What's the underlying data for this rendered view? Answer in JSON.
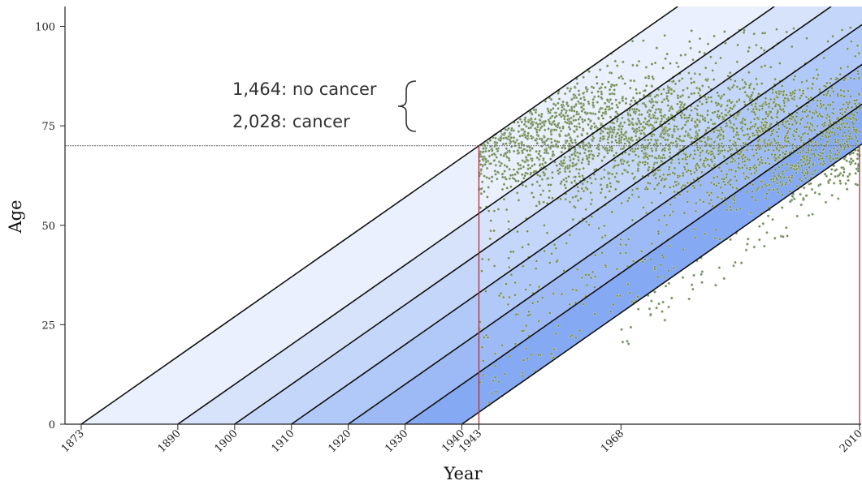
{
  "chart_data": {
    "type": "scatter",
    "title": "",
    "xlabel": "Year",
    "ylabel": "Age",
    "xlim": [
      1873,
      2010
    ],
    "ylim": [
      0,
      105
    ],
    "x_ticks": [
      1873,
      1890,
      1900,
      1910,
      1920,
      1930,
      1940,
      1943,
      1968,
      2010
    ],
    "y_ticks": [
      0,
      25,
      50,
      75,
      100
    ],
    "birth_cohort_lines": [
      1873,
      1890,
      1900,
      1910,
      1920,
      1930,
      1940
    ],
    "cohort_band_colors": [
      "#eaf0fd",
      "#d7e3fb",
      "#c4d6fa",
      "#b1c9f8",
      "#9dbaf6",
      "#86a9f3"
    ],
    "vertical_markers": [
      1943,
      2010
    ],
    "horizontal_reference": 70,
    "points_description": "approx. 5,000 individual cases; each point is (diagnosis/observation year, age)",
    "point_color": "#6f8a5f",
    "annotations": [
      {
        "text": "1,464:  no cancer"
      },
      {
        "text": "2,028:  cancer"
      }
    ],
    "grid": false
  }
}
